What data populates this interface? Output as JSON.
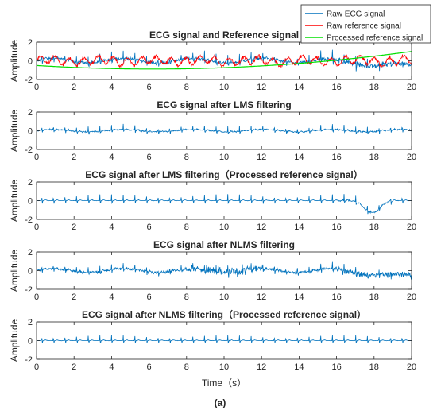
{
  "figure": {
    "caption": "(a)",
    "xlabel": "Time（s）"
  },
  "chart_data": [
    {
      "type": "line",
      "title": "ECG signal and Reference signal",
      "xlabel": "",
      "ylabel": "Amplitude",
      "xlim": [
        0,
        20
      ],
      "ylim": [
        -2,
        2
      ],
      "xticks": [
        0,
        2,
        4,
        6,
        8,
        10,
        12,
        14,
        16,
        18,
        20
      ],
      "yticks": [
        -2,
        0,
        2
      ],
      "legend": {
        "placement": "top-right",
        "entries": [
          "Raw ECG signal",
          "Raw reference signal",
          "Processed reference signal"
        ]
      },
      "series": [
        {
          "name": "Raw ECG signal",
          "color": "#0072bd",
          "signal": "ecg",
          "amplitude": 0.9,
          "noise": 0.5,
          "wander": 0.25,
          "drift_from_s": 15,
          "drift": [
            0,
            -0.6
          ]
        },
        {
          "name": "Raw reference signal",
          "color": "#ff0000",
          "signal": "reference",
          "amplitude": 0.5
        },
        {
          "name": "Processed reference signal",
          "color": "#00e000",
          "signal": "quadratic",
          "x": [
            0,
            9,
            20
          ],
          "y": [
            -0.5,
            -0.8,
            1.0
          ]
        }
      ]
    },
    {
      "type": "line",
      "title": "ECG signal after LMS filtering",
      "xlabel": "",
      "ylabel": "Amplitude",
      "xlim": [
        0,
        20
      ],
      "ylim": [
        -2,
        2
      ],
      "xticks": [
        0,
        2,
        4,
        6,
        8,
        10,
        12,
        14,
        16,
        18,
        20
      ],
      "yticks": [
        -2,
        0,
        2
      ],
      "series": [
        {
          "name": "",
          "color": "#0072bd",
          "signal": "ecg",
          "amplitude": 0.6,
          "noise": 0.25,
          "wander": 0.12
        }
      ]
    },
    {
      "type": "line",
      "title": "ECG signal after LMS filtering（Processed reference signal）",
      "xlabel": "",
      "ylabel": "Amplitude",
      "xlim": [
        0,
        20
      ],
      "ylim": [
        -2,
        2
      ],
      "xticks": [
        0,
        2,
        4,
        6,
        8,
        10,
        12,
        14,
        16,
        18,
        20
      ],
      "yticks": [
        -2,
        0,
        2
      ],
      "series": [
        {
          "name": "",
          "color": "#0072bd",
          "signal": "ecg",
          "amplitude": 0.7,
          "noise": 0.06,
          "wander": 0.0,
          "disturbance_s": [
            16,
            19
          ],
          "disturbance_peak": -1.3
        }
      ]
    },
    {
      "type": "line",
      "title": "ECG signal after NLMS filtering",
      "xlabel": "",
      "ylabel": "Amplitude",
      "xlim": [
        0,
        20
      ],
      "ylim": [
        -2,
        2
      ],
      "xticks": [
        0,
        2,
        4,
        6,
        8,
        10,
        12,
        14,
        16,
        18,
        20
      ],
      "yticks": [
        -2,
        0,
        2
      ],
      "series": [
        {
          "name": "",
          "color": "#0072bd",
          "signal": "ecg",
          "amplitude": 0.7,
          "noise": 0.45,
          "wander": 0.2,
          "burst_s": [
            8,
            12
          ],
          "burst_noise": 1.3,
          "late_s": [
            16,
            20
          ],
          "late_noise": 1.0,
          "late_drift": -0.7
        }
      ]
    },
    {
      "type": "line",
      "title": "ECG signal after NLMS filtering（Processed reference signal）",
      "xlabel": "",
      "ylabel": "Amplitude",
      "xlim": [
        0,
        20
      ],
      "ylim": [
        -2,
        2
      ],
      "xticks": [
        0,
        2,
        4,
        6,
        8,
        10,
        12,
        14,
        16,
        18,
        20
      ],
      "yticks": [
        -2,
        0,
        2
      ],
      "series": [
        {
          "name": "",
          "color": "#0072bd",
          "signal": "ecg",
          "amplitude": 0.6,
          "noise": 0.05,
          "wander": 0.0
        }
      ]
    }
  ]
}
